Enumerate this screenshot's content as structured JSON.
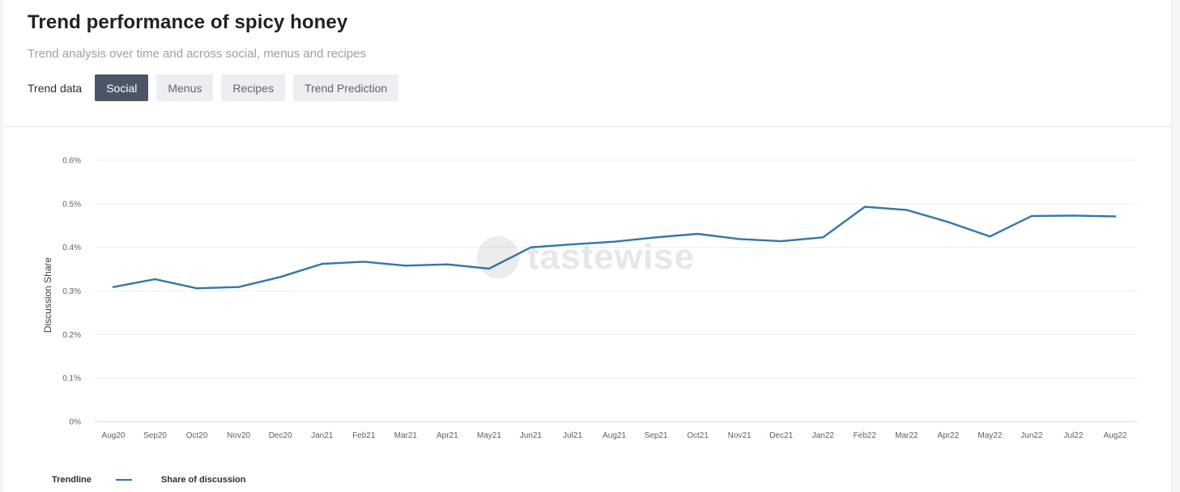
{
  "header": {
    "title": "Trend performance of spicy honey",
    "subtitle": "Trend analysis over time and across social, menus and recipes",
    "trend_label": "Trend data",
    "tabs": [
      {
        "label": "Social",
        "active": true
      },
      {
        "label": "Menus",
        "active": false
      },
      {
        "label": "Recipes",
        "active": false
      },
      {
        "label": "Trend Prediction",
        "active": false
      }
    ]
  },
  "watermark": {
    "text": "tastewise"
  },
  "legend": {
    "title": "Trendline",
    "series_label": "Share of discussion",
    "color": "#2b78b4"
  },
  "colors": {
    "line": "#2b78b4",
    "grid": "#eceef1",
    "active_tab": "#4b5566"
  },
  "chart_data": {
    "type": "line",
    "title": "",
    "xlabel": "",
    "ylabel": "Discussion Share",
    "ylim": [
      0,
      0.6
    ],
    "yticks": [
      0,
      0.1,
      0.2,
      0.3,
      0.4,
      0.5,
      0.6
    ],
    "ytick_labels": [
      "0%",
      "0.1%",
      "0.2%",
      "0.3%",
      "0.4%",
      "0.5%",
      "0.6%"
    ],
    "categories": [
      "Aug20",
      "Sep20",
      "Oct20",
      "Nov20",
      "Dec20",
      "Jan21",
      "Feb21",
      "Mar21",
      "Apr21",
      "May21",
      "Jun21",
      "Jul21",
      "Aug21",
      "Sep21",
      "Oct21",
      "Nov21",
      "Dec21",
      "Jan22",
      "Feb22",
      "Mar22",
      "Apr22",
      "May22",
      "Jun22",
      "Jul22",
      "Aug22"
    ],
    "series": [
      {
        "name": "Share of discussion",
        "values": [
          0.309,
          0.327,
          0.306,
          0.309,
          0.332,
          0.362,
          0.367,
          0.358,
          0.361,
          0.351,
          0.4,
          0.407,
          0.413,
          0.423,
          0.431,
          0.419,
          0.414,
          0.423,
          0.493,
          0.486,
          0.458,
          0.425,
          0.472,
          0.473,
          0.471
        ]
      }
    ],
    "grid": true
  }
}
